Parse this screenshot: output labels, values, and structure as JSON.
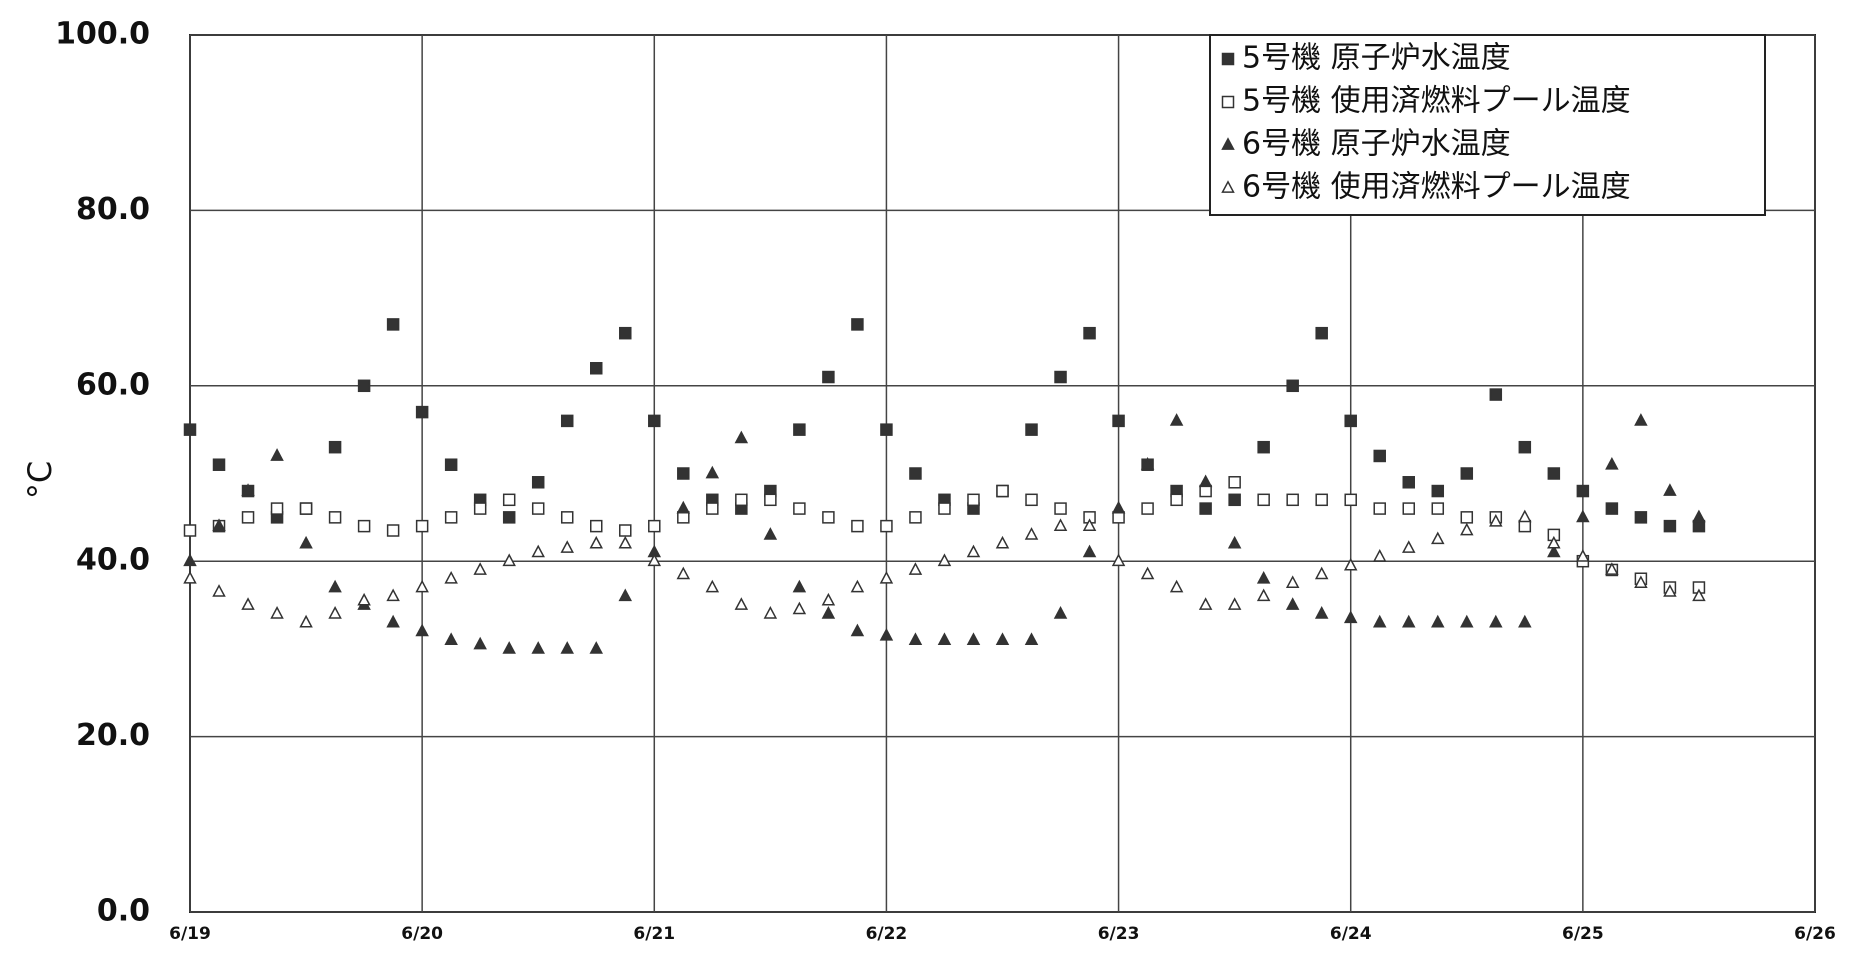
{
  "chart_data": {
    "type": "scatter",
    "y_label": "°C",
    "xlim": [
      0,
      7
    ],
    "ylim": [
      0,
      100
    ],
    "xticks": [
      {
        "value": 0,
        "label": "6/19"
      },
      {
        "value": 1,
        "label": "6/20"
      },
      {
        "value": 2,
        "label": "6/21"
      },
      {
        "value": 3,
        "label": "6/22"
      },
      {
        "value": 4,
        "label": "6/23"
      },
      {
        "value": 5,
        "label": "6/24"
      },
      {
        "value": 6,
        "label": "6/25"
      },
      {
        "value": 7,
        "label": "6/26"
      }
    ],
    "yticks": [
      {
        "value": 0,
        "label": "0.0"
      },
      {
        "value": 20,
        "label": "20.0"
      },
      {
        "value": 40,
        "label": "40.0"
      },
      {
        "value": 60,
        "label": "60.0"
      },
      {
        "value": 80,
        "label": "80.0"
      },
      {
        "value": 100,
        "label": "100.0"
      }
    ],
    "grid": true,
    "legend": "top-right",
    "x": [
      0,
      0.125,
      0.25,
      0.375,
      0.5,
      0.625,
      0.75,
      0.875,
      1,
      1.125,
      1.25,
      1.375,
      1.5,
      1.625,
      1.75,
      1.875,
      2,
      2.125,
      2.25,
      2.375,
      2.5,
      2.625,
      2.75,
      2.875,
      3,
      3.125,
      3.25,
      3.375,
      3.5,
      3.625,
      3.75,
      3.875,
      4,
      4.125,
      4.25,
      4.375,
      4.5,
      4.625,
      4.75,
      4.875,
      5,
      5.125,
      5.25,
      5.375,
      5.5,
      5.625,
      5.75,
      5.875,
      6,
      6.125,
      6.25,
      6.375,
      6.5
    ],
    "series": [
      {
        "name": "5号機 原子炉水温度",
        "color": "#333333",
        "marker": "square",
        "filled": true,
        "values": [
          55,
          51,
          48,
          45,
          46,
          53,
          60,
          67,
          57,
          51,
          47,
          45,
          49,
          56,
          62,
          66,
          56,
          50,
          47,
          46,
          48,
          55,
          61,
          67,
          55,
          50,
          47,
          46,
          48,
          55,
          61,
          66,
          56,
          51,
          48,
          46,
          47,
          53,
          60,
          66,
          56,
          52,
          49,
          48,
          50,
          59,
          53,
          50,
          48,
          46,
          45,
          44,
          44
        ]
      },
      {
        "name": "5号機 使用済燃料プール温度",
        "color": "#333333",
        "marker": "square",
        "filled": false,
        "values": [
          43.5,
          44,
          45,
          46,
          46,
          45,
          44,
          43.5,
          44,
          45,
          46,
          47,
          46,
          45,
          44,
          43.5,
          44,
          45,
          46,
          47,
          47,
          46,
          45,
          44,
          44,
          45,
          46,
          47,
          48,
          47,
          46,
          45,
          45,
          46,
          47,
          48,
          49,
          47,
          47,
          47,
          47,
          46,
          46,
          46,
          45,
          45,
          44,
          43,
          40,
          39,
          38,
          37,
          37
        ]
      },
      {
        "name": "6号機 原子炉水温度",
        "color": "#333333",
        "marker": "triangle",
        "filled": true,
        "values": [
          40,
          44,
          48,
          52,
          42,
          37,
          35,
          33,
          32,
          31,
          30.5,
          30,
          30,
          30,
          30,
          36,
          41,
          46,
          50,
          54,
          43,
          37,
          34,
          32,
          31.5,
          31,
          31,
          31,
          31,
          31,
          34,
          41,
          46,
          51,
          56,
          49,
          42,
          38,
          35,
          34,
          33.5,
          33,
          33,
          33,
          33,
          33,
          33,
          41,
          45,
          51,
          56,
          48,
          45
        ]
      },
      {
        "name": "6号機 使用済燃料プール温度",
        "color": "#333333",
        "marker": "triangle",
        "filled": false,
        "values": [
          38,
          36.5,
          35,
          34,
          33,
          34,
          35.5,
          36,
          37,
          38,
          39,
          40,
          41,
          41.5,
          42,
          42,
          40,
          38.5,
          37,
          35,
          34,
          34.5,
          35.5,
          37,
          38,
          39,
          40,
          41,
          42,
          43,
          44,
          44,
          40,
          38.5,
          37,
          35,
          35,
          36,
          37.5,
          38.5,
          39.5,
          40.5,
          41.5,
          42.5,
          43.5,
          44.5,
          45,
          42,
          40.5,
          39,
          37.5,
          36.5,
          36
        ]
      }
    ]
  }
}
